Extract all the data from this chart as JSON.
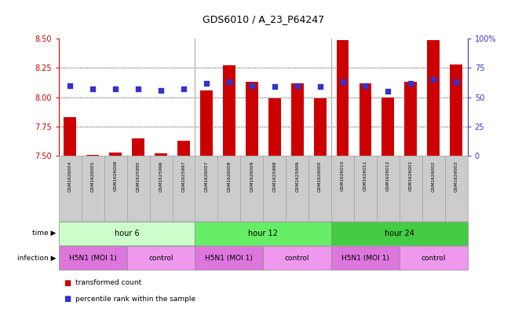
{
  "title": "GDS6010 / A_23_P64247",
  "samples": [
    "GSM1626004",
    "GSM1626005",
    "GSM1626006",
    "GSM1625995",
    "GSM1625996",
    "GSM1625997",
    "GSM1626007",
    "GSM1626008",
    "GSM1626009",
    "GSM1625998",
    "GSM1625999",
    "GSM1626000",
    "GSM1626010",
    "GSM1626011",
    "GSM1626012",
    "GSM1626001",
    "GSM1626002",
    "GSM1626003"
  ],
  "bar_values": [
    7.83,
    7.51,
    7.53,
    7.65,
    7.52,
    7.63,
    8.06,
    8.27,
    8.13,
    7.99,
    8.12,
    7.99,
    8.49,
    8.12,
    8.0,
    8.13,
    8.49,
    8.28
  ],
  "dot_values": [
    60,
    57,
    57,
    57,
    56,
    57,
    62,
    63,
    60,
    59,
    60,
    59,
    63,
    60,
    55,
    62,
    65,
    63
  ],
  "ymin": 7.5,
  "ymax": 8.5,
  "yticks": [
    7.5,
    7.75,
    8.0,
    8.25,
    8.5
  ],
  "right_yticks": [
    0,
    25,
    50,
    75,
    100
  ],
  "bar_color": "#cc0000",
  "dot_color": "#3333cc",
  "bar_width": 0.55,
  "groups": [
    {
      "label": "hour 6",
      "start": 0,
      "end": 6,
      "color": "#ccffcc"
    },
    {
      "label": "hour 12",
      "start": 6,
      "end": 12,
      "color": "#66ee66"
    },
    {
      "label": "hour 24",
      "start": 12,
      "end": 18,
      "color": "#44cc44"
    }
  ],
  "infections": [
    {
      "label": "H5N1 (MOI 1)",
      "start": 0,
      "end": 3,
      "color": "#dd77dd"
    },
    {
      "label": "control",
      "start": 3,
      "end": 6,
      "color": "#ee99ee"
    },
    {
      "label": "H5N1 (MOI 1)",
      "start": 6,
      "end": 9,
      "color": "#dd77dd"
    },
    {
      "label": "control",
      "start": 9,
      "end": 12,
      "color": "#ee99ee"
    },
    {
      "label": "H5N1 (MOI 1)",
      "start": 12,
      "end": 15,
      "color": "#dd77dd"
    },
    {
      "label": "control",
      "start": 15,
      "end": 18,
      "color": "#ee99ee"
    }
  ],
  "legend_bar_label": "transformed count",
  "legend_dot_label": "percentile rank within the sample",
  "background_color": "#ffffff",
  "right_axis_color": "#3333cc",
  "left_axis_color": "#cc0000",
  "sample_box_color": "#cccccc",
  "sample_box_edge": "#999999"
}
